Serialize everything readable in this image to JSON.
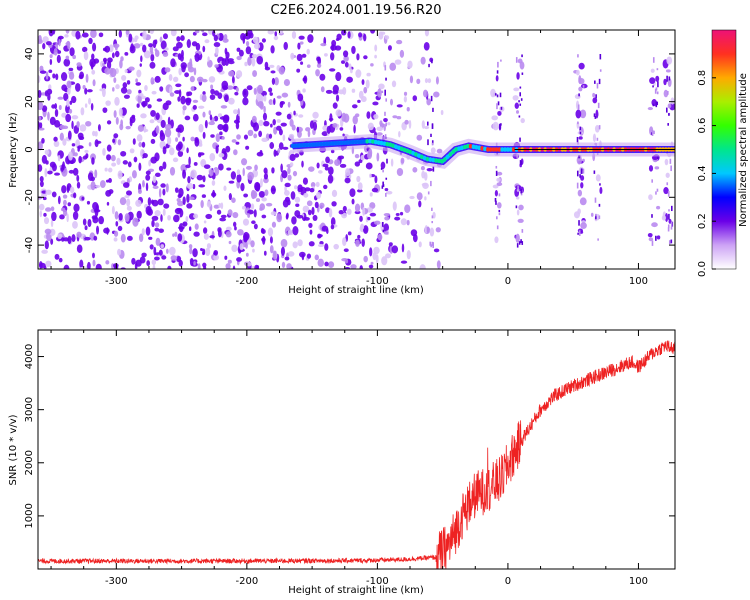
{
  "title": "C2E6.2024.001.19.56.R20",
  "chart_data": [
    {
      "type": "heatmap",
      "xlabel": "Height of straight line (km)",
      "ylabel": "Frequency (Hz)",
      "xlim": [
        -360,
        128
      ],
      "ylim": [
        -50,
        50
      ],
      "xticks": [
        -300,
        -200,
        -100,
        0,
        100
      ],
      "yticks": [
        -40,
        -20,
        0,
        20,
        40
      ],
      "colorbar": {
        "label": "Normalized spectral amplitude",
        "range": [
          0,
          1
        ],
        "ticks": [
          "0.0",
          "0.2",
          "0.4",
          "0.6",
          "0.8"
        ],
        "colors": [
          "#ffffff",
          "#cda3f5",
          "#6a00e8",
          "#0000ff",
          "#00c8ff",
          "#00e68c",
          "#33ff00",
          "#aaee00",
          "#ffaa00",
          "#ff3020",
          "#ee1177"
        ]
      },
      "trace": [
        {
          "x": -165,
          "y": 1.5
        },
        {
          "x": -105,
          "y": 3.5
        },
        {
          "x": -90,
          "y": 2
        },
        {
          "x": -75,
          "y": -1
        },
        {
          "x": -62,
          "y": -4
        },
        {
          "x": -50,
          "y": -5
        },
        {
          "x": -40,
          "y": 0
        },
        {
          "x": -30,
          "y": 1.5
        },
        {
          "x": -15,
          "y": 0
        },
        {
          "x": 0,
          "y": 0
        },
        {
          "x": 128,
          "y": 0
        }
      ],
      "bursts": [
        -95,
        -60,
        -8,
        8,
        55,
        68,
        112,
        123
      ]
    },
    {
      "type": "line",
      "xlabel": "Height of straight line (km)",
      "ylabel": "SNR (10 * v/v)",
      "xlim": [
        -360,
        128
      ],
      "ylim": [
        0,
        4500
      ],
      "xticks": [
        -300,
        -200,
        -100,
        0,
        100
      ],
      "yticks": [
        1000,
        2000,
        3000,
        4000
      ],
      "color": "#ee2222",
      "series": [
        {
          "x": -360,
          "y": 150
        },
        {
          "x": -200,
          "y": 150
        },
        {
          "x": -110,
          "y": 160
        },
        {
          "x": -80,
          "y": 180
        },
        {
          "x": -55,
          "y": 220
        },
        {
          "x": -45,
          "y": 450
        },
        {
          "x": -35,
          "y": 1000
        },
        {
          "x": -25,
          "y": 1400
        },
        {
          "x": -15,
          "y": 1500
        },
        {
          "x": -5,
          "y": 1700
        },
        {
          "x": 5,
          "y": 2200
        },
        {
          "x": 15,
          "y": 2600
        },
        {
          "x": 25,
          "y": 3000
        },
        {
          "x": 35,
          "y": 3250
        },
        {
          "x": 50,
          "y": 3450
        },
        {
          "x": 65,
          "y": 3600
        },
        {
          "x": 80,
          "y": 3750
        },
        {
          "x": 95,
          "y": 3900
        },
        {
          "x": 100,
          "y": 3800
        },
        {
          "x": 110,
          "y": 4050
        },
        {
          "x": 120,
          "y": 4200
        },
        {
          "x": 128,
          "y": 4150
        }
      ]
    }
  ]
}
